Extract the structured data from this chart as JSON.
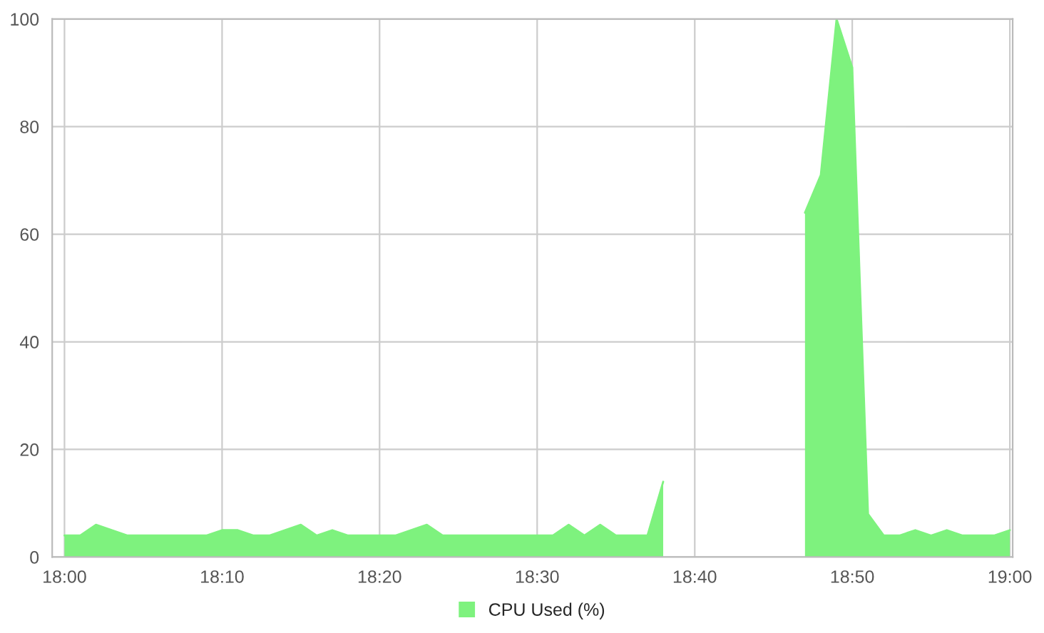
{
  "chart_data": {
    "type": "area",
    "x": [
      18.0,
      18.0167,
      18.0333,
      18.0667,
      18.15,
      18.1667,
      18.1833,
      18.2,
      18.2167,
      18.25,
      18.2667,
      18.2833,
      18.3,
      18.35,
      18.3833,
      18.4,
      18.5167,
      18.5333,
      18.55,
      18.5667,
      18.5833,
      18.6167,
      18.6333,
      18.7,
      18.7833,
      18.8,
      18.8167,
      18.8333,
      18.85,
      18.8667,
      18.8833,
      18.9,
      18.9167,
      18.9333,
      18.95,
      18.9833,
      19.0
    ],
    "series": [
      {
        "name": "CPU Used (%)",
        "color": "#7ef27e",
        "values": [
          4,
          4,
          6,
          4,
          4,
          5,
          5,
          4,
          4,
          6,
          4,
          5,
          4,
          4,
          6,
          4,
          4,
          6,
          4,
          6,
          4,
          4,
          14,
          null,
          64,
          71,
          100,
          91,
          8,
          4,
          4,
          5,
          4,
          5,
          4,
          4,
          5
        ]
      }
    ],
    "xlim": [
      17.987,
      19.003
    ],
    "ylim": [
      0,
      100
    ],
    "xticks": [
      {
        "value": 18.0,
        "label": "18:00"
      },
      {
        "value": 18.1667,
        "label": "18:10"
      },
      {
        "value": 18.3333,
        "label": "18:20"
      },
      {
        "value": 18.5,
        "label": "18:30"
      },
      {
        "value": 18.6667,
        "label": "18:40"
      },
      {
        "value": 18.8333,
        "label": "18:50"
      },
      {
        "value": 19.0,
        "label": "19:00"
      }
    ],
    "yticks": [
      0,
      20,
      40,
      60,
      80,
      100
    ],
    "grid": true,
    "legend": "bottom"
  }
}
